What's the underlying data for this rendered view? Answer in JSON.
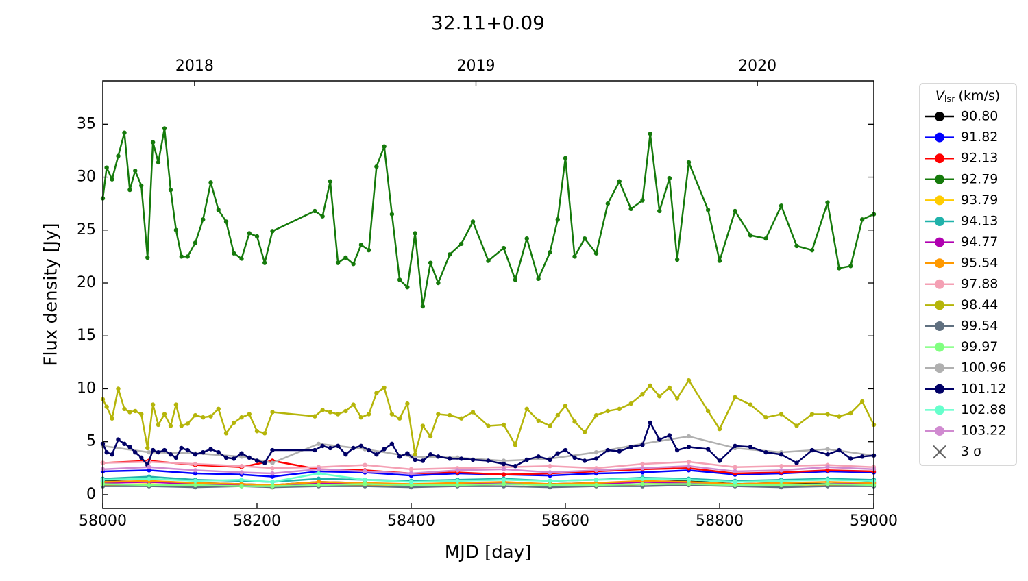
{
  "chart_data": {
    "type": "line",
    "title": "32.11+0.09",
    "xlabel": "MJD [day]",
    "ylabel": "Flux density [Jy]",
    "legend_title_symbol": "V",
    "legend_title_sub": "lsr",
    "legend_title_unit": "(km/s)",
    "upper_limit_label": "3 σ",
    "upper_limit_color": "#666666",
    "legend": "outside right",
    "xlim": [
      58000,
      59000
    ],
    "xticks": [
      58000,
      58200,
      58400,
      58600,
      58800,
      59000
    ],
    "x2ticks": [
      {
        "value": 58119,
        "label": "2018"
      },
      {
        "value": 58484,
        "label": "2019"
      },
      {
        "value": 58849,
        "label": "2020"
      }
    ],
    "ylim": [
      -1.3,
      39.1
    ],
    "yticks": [
      0,
      5,
      10,
      15,
      20,
      25,
      30,
      35
    ],
    "x": [
      58000,
      58005,
      58012,
      58020,
      58028,
      58035,
      58042,
      58050,
      58058,
      58065,
      58072,
      58080,
      58088,
      58095,
      58102,
      58110,
      58120,
      58130,
      58140,
      58150,
      58160,
      58170,
      58180,
      58190,
      58200,
      58210,
      58220,
      58275,
      58285,
      58295,
      58305,
      58315,
      58325,
      58335,
      58345,
      58355,
      58365,
      58375,
      58385,
      58395,
      58405,
      58415,
      58425,
      58435,
      58450,
      58465,
      58480,
      58500,
      58520,
      58535,
      58550,
      58565,
      58580,
      58590,
      58600,
      58612,
      58625,
      58640,
      58655,
      58670,
      58685,
      58700,
      58710,
      58722,
      58735,
      58745,
      58760,
      58785,
      58800,
      58820,
      58840,
      58860,
      58880,
      58900,
      58920,
      58940,
      58955,
      58970,
      58985,
      59000
    ],
    "series": [
      {
        "name": "90.80",
        "color": "#000000",
        "x": [
          58000,
          58060,
          58120,
          58180,
          58220,
          58280,
          58340,
          58400,
          58460,
          58520,
          58580,
          58640,
          58700,
          58760,
          58820,
          58880,
          58940,
          59000
        ],
        "values": [
          1.3,
          1.2,
          1.1,
          1.0,
          0.9,
          1.2,
          1.1,
          0.9,
          1.0,
          1.1,
          1.0,
          1.1,
          1.2,
          1.3,
          1.0,
          1.1,
          1.0,
          1.2
        ]
      },
      {
        "name": "91.82",
        "color": "#0000ff",
        "x": [
          58000,
          58060,
          58120,
          58180,
          58220,
          58280,
          58340,
          58400,
          58460,
          58520,
          58580,
          58640,
          58700,
          58760,
          58820,
          58880,
          58940,
          59000
        ],
        "values": [
          2.2,
          2.3,
          2.0,
          1.9,
          1.7,
          2.2,
          2.1,
          1.8,
          2.0,
          1.9,
          1.8,
          2.0,
          2.1,
          2.3,
          1.9,
          2.0,
          2.2,
          2.1
        ]
      },
      {
        "name": "92.13",
        "color": "#ff0000",
        "x": [
          58000,
          58060,
          58120,
          58180,
          58220,
          58280,
          58340,
          58400,
          58460,
          58520,
          58580,
          58640,
          58700,
          58760,
          58820,
          58880,
          58940,
          59000
        ],
        "values": [
          3.0,
          3.2,
          2.8,
          2.6,
          3.2,
          2.4,
          2.3,
          2.0,
          2.1,
          1.9,
          2.0,
          2.2,
          2.4,
          2.5,
          2.0,
          2.1,
          2.3,
          2.2
        ]
      },
      {
        "name": "92.79",
        "color": "#157a0b",
        "values": [
          28,
          30.9,
          29.8,
          32,
          34.2,
          28.8,
          30.6,
          29.2,
          22.4,
          33.3,
          31.4,
          34.6,
          28.8,
          25,
          22.5,
          22.5,
          23.8,
          26,
          29.5,
          26.9,
          25.8,
          22.8,
          22.3,
          24.7,
          24.4,
          21.9,
          24.9,
          26.8,
          26.3,
          29.6,
          21.9,
          22.4,
          21.8,
          23.6,
          23.1,
          31,
          32.9,
          26.5,
          20.3,
          19.6,
          24.7,
          17.8,
          21.9,
          20,
          22.7,
          23.7,
          25.8,
          22.1,
          23.3,
          20.3,
          24.2,
          20.4,
          22.9,
          26,
          31.8,
          22.5,
          24.2,
          22.8,
          27.5,
          29.6,
          27,
          27.8,
          34.1,
          26.8,
          29.9,
          22.2,
          31.4,
          26.9,
          22.1,
          26.8,
          24.5,
          24.2,
          27.3,
          23.5,
          23.1,
          27.6,
          21.4,
          21.6,
          26,
          26.5
        ]
      },
      {
        "name": "93.79",
        "color": "#ffcc00",
        "x": [
          58000,
          58060,
          58120,
          58180,
          58220,
          58280,
          58340,
          58400,
          58460,
          58520,
          58580,
          58640,
          58700,
          58760,
          58820,
          58880,
          58940,
          59000
        ],
        "values": [
          0.9,
          1.0,
          0.8,
          0.9,
          0.7,
          1.0,
          0.9,
          0.8,
          0.9,
          1.0,
          0.9,
          0.8,
          1.0,
          1.1,
          0.9,
          0.8,
          0.9,
          1.0
        ]
      },
      {
        "name": "94.13",
        "color": "#20b2aa",
        "x": [
          58000,
          58060,
          58120,
          58180,
          58220,
          58280,
          58340,
          58400,
          58460,
          58520,
          58580,
          58640,
          58700,
          58760,
          58820,
          58880,
          58940,
          59000
        ],
        "values": [
          1.5,
          1.7,
          1.4,
          1.3,
          1.2,
          1.5,
          1.4,
          1.3,
          1.4,
          1.5,
          1.3,
          1.4,
          1.6,
          1.5,
          1.3,
          1.4,
          1.5,
          1.4
        ]
      },
      {
        "name": "94.77",
        "color": "#b000b0",
        "x": [
          58000,
          58060,
          58120,
          58180,
          58220,
          58280,
          58340,
          58400,
          58460,
          58520,
          58580,
          58640,
          58700,
          58760,
          58820,
          58880,
          58940,
          59000
        ],
        "values": [
          1.1,
          1.2,
          1.0,
          0.9,
          0.8,
          1.1,
          1.0,
          0.9,
          1.0,
          1.1,
          0.9,
          1.0,
          1.2,
          1.1,
          1.0,
          0.9,
          1.0,
          1.1
        ]
      },
      {
        "name": "95.54",
        "color": "#ff9900",
        "x": [
          58000,
          58060,
          58120,
          58180,
          58220,
          58280,
          58340,
          58400,
          58460,
          58520,
          58580,
          58640,
          58700,
          58760,
          58820,
          58880,
          58940,
          59000
        ],
        "values": [
          1.2,
          1.3,
          1.1,
          1.0,
          0.9,
          1.2,
          1.1,
          1.0,
          1.1,
          1.2,
          1.0,
          1.1,
          1.3,
          1.2,
          1.0,
          1.1,
          1.2,
          1.1
        ]
      },
      {
        "name": "97.88",
        "color": "#f4a0b4",
        "x": [
          58000,
          58060,
          58120,
          58180,
          58220,
          58280,
          58340,
          58400,
          58460,
          58520,
          58580,
          58640,
          58700,
          58760,
          58820,
          58880,
          58940,
          59000
        ],
        "values": [
          3.0,
          3.1,
          2.9,
          2.7,
          2.5,
          2.6,
          2.8,
          2.4,
          2.5,
          2.6,
          2.7,
          2.5,
          2.9,
          3.1,
          2.6,
          2.7,
          2.8,
          2.6
        ]
      },
      {
        "name": "98.44",
        "color": "#b5b50a",
        "values": [
          9,
          8.3,
          7.2,
          10,
          8.1,
          7.8,
          7.9,
          7.6,
          4.4,
          8.5,
          6.6,
          7.6,
          6.5,
          8.5,
          6.5,
          6.7,
          7.5,
          7.3,
          7.4,
          8.1,
          5.8,
          6.8,
          7.3,
          7.6,
          6,
          5.8,
          7.8,
          7.4,
          8,
          7.8,
          7.6,
          7.9,
          8.5,
          7.3,
          7.6,
          9.6,
          10.1,
          7.6,
          7.2,
          8.6,
          3.8,
          6.5,
          5.5,
          7.6,
          7.5,
          7.2,
          7.8,
          6.5,
          6.6,
          4.7,
          8.1,
          7,
          6.5,
          7.5,
          8.4,
          6.9,
          5.9,
          7.5,
          7.9,
          8.1,
          8.6,
          9.5,
          10.3,
          9.3,
          10.1,
          9.1,
          10.8,
          7.9,
          6.2,
          9.2,
          8.5,
          7.3,
          7.6,
          6.5,
          7.6,
          7.6,
          7.4,
          7.7,
          8.8,
          6.6
        ]
      },
      {
        "name": "99.54",
        "color": "#607080",
        "x": [
          58000,
          58060,
          58120,
          58180,
          58220,
          58280,
          58340,
          58400,
          58460,
          58520,
          58580,
          58640,
          58700,
          58760,
          58820,
          58880,
          58940,
          59000
        ],
        "values": [
          0.8,
          0.8,
          0.7,
          0.8,
          0.7,
          0.8,
          0.8,
          0.7,
          0.8,
          0.8,
          0.7,
          0.8,
          0.8,
          0.9,
          0.8,
          0.7,
          0.8,
          0.8
        ]
      },
      {
        "name": "99.97",
        "color": "#80ff80",
        "x": [
          58000,
          58060,
          58120,
          58180,
          58220,
          58280,
          58340,
          58400,
          58460,
          58520,
          58580,
          58640,
          58700,
          58760,
          58820,
          58880,
          58940,
          59000
        ],
        "values": [
          1.0,
          0.9,
          0.9,
          0.8,
          0.8,
          0.9,
          1.0,
          0.9,
          0.9,
          1.0,
          0.9,
          0.9,
          1.0,
          1.0,
          0.9,
          0.9,
          1.0,
          0.9
        ]
      },
      {
        "name": "100.96",
        "color": "#b0b0b0",
        "x": [
          58000,
          58060,
          58120,
          58180,
          58220,
          58280,
          58340,
          58400,
          58460,
          58520,
          58580,
          58640,
          58700,
          58760,
          58820,
          58880,
          58940,
          59000
        ],
        "values": [
          4.6,
          4.0,
          3.9,
          3.6,
          3.0,
          4.8,
          4.3,
          3.6,
          3.5,
          3.2,
          3.4,
          4.0,
          4.8,
          5.5,
          4.4,
          4.0,
          4.3,
          3.7
        ]
      },
      {
        "name": "101.12",
        "color": "#000066",
        "values": [
          4.8,
          4,
          3.8,
          5.2,
          4.8,
          4.5,
          4,
          3.5,
          2.8,
          4.2,
          4,
          4.2,
          3.8,
          3.5,
          4.4,
          4.2,
          3.8,
          4,
          4.3,
          4,
          3.5,
          3.4,
          3.9,
          3.5,
          3.2,
          3,
          4.2,
          4.2,
          4.6,
          4.4,
          4.6,
          3.8,
          4.4,
          4.6,
          4.2,
          3.8,
          4.3,
          4.8,
          3.6,
          3.9,
          3.3,
          3.2,
          3.8,
          3.6,
          3.4,
          3.4,
          3.3,
          3.2,
          2.9,
          2.7,
          3.3,
          3.6,
          3.3,
          3.9,
          4.2,
          3.5,
          3.2,
          3.4,
          4.2,
          4.1,
          4.5,
          4.7,
          6.8,
          5.2,
          5.6,
          4.2,
          4.5,
          4.3,
          3.2,
          4.6,
          4.5,
          4,
          3.8,
          3,
          4.2,
          3.8,
          4.2,
          3.4,
          3.6,
          3.7
        ]
      },
      {
        "name": "102.88",
        "color": "#66ffcc",
        "x": [
          58000,
          58060,
          58120,
          58180,
          58220,
          58280,
          58340,
          58400,
          58460,
          58520,
          58580,
          58640,
          58700,
          58760,
          58820,
          58880,
          58940,
          59000
        ],
        "values": [
          1.4,
          1.5,
          1.3,
          1.4,
          1.2,
          2.0,
          1.4,
          1.2,
          1.3,
          1.4,
          1.3,
          1.4,
          1.5,
          1.4,
          1.2,
          1.3,
          1.4,
          1.3
        ]
      },
      {
        "name": "103.22",
        "color": "#d08ad0",
        "x": [
          58000,
          58060,
          58120,
          58180,
          58220,
          58280,
          58340,
          58400,
          58460,
          58520,
          58580,
          58640,
          58700,
          58760,
          58820,
          58880,
          58940,
          59000
        ],
        "values": [
          2.4,
          2.6,
          2.3,
          2.1,
          2.0,
          2.4,
          2.2,
          2.0,
          2.3,
          2.4,
          2.1,
          2.3,
          2.5,
          2.7,
          2.2,
          2.3,
          2.6,
          2.4
        ]
      }
    ]
  }
}
